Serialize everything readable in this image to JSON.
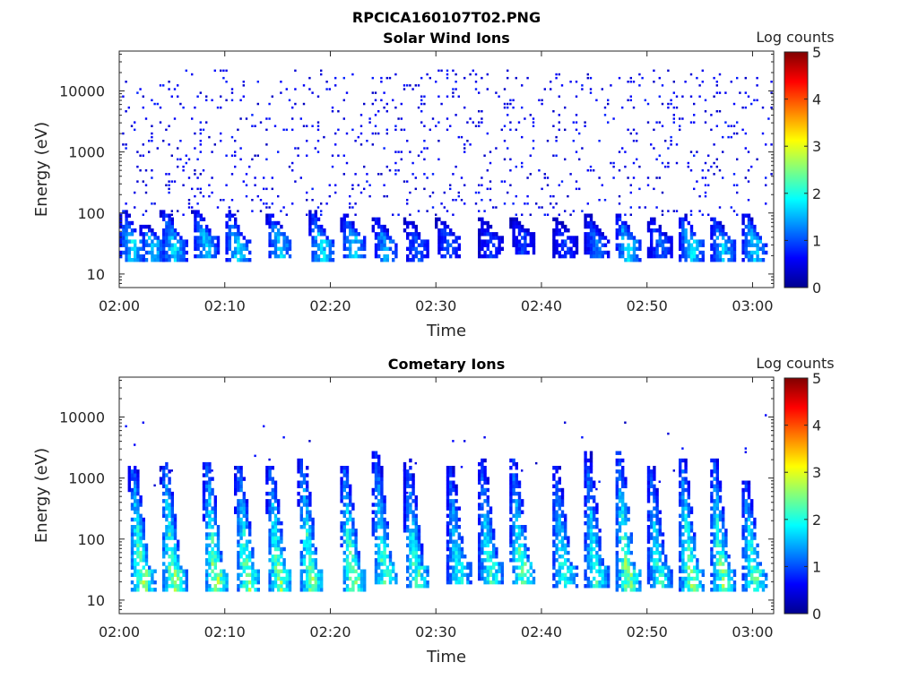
{
  "figure": {
    "title": "RPCICA160107T02.PNG"
  },
  "chart_data": [
    {
      "type": "heatmap",
      "title": "Solar Wind Ions",
      "xlabel": "Time",
      "ylabel": "Energy (eV)",
      "y_scale": "log",
      "ylim": [
        6,
        45000
      ],
      "x_range": [
        "02:00",
        "03:02"
      ],
      "x_ticks": [
        "02:00",
        "02:10",
        "02:20",
        "02:30",
        "02:40",
        "02:50",
        "03:00"
      ],
      "y_ticks": [
        "10",
        "100",
        "1000",
        "10000"
      ],
      "colorbar": {
        "label": "Log counts",
        "min": 0,
        "max": 5,
        "ticks": [
          "0",
          "1",
          "2",
          "3",
          "4",
          "5"
        ]
      },
      "scattered_low_counts": {
        "energy_range_eV": [
          80,
          20000
        ],
        "log_count": 0.3
      },
      "bursts": [
        {
          "time": "02:01",
          "peak_eV": 35,
          "top_eV": 110,
          "max_log_count": 1.9
        },
        {
          "time": "02:03",
          "peak_eV": 35,
          "top_eV": 60,
          "max_log_count": 1.8
        },
        {
          "time": "02:05",
          "peak_eV": 35,
          "top_eV": 100,
          "max_log_count": 1.9
        },
        {
          "time": "02:08",
          "peak_eV": 40,
          "top_eV": 100,
          "max_log_count": 1.8
        },
        {
          "time": "02:11",
          "peak_eV": 35,
          "top_eV": 100,
          "max_log_count": 1.9
        },
        {
          "time": "02:15",
          "peak_eV": 40,
          "top_eV": 90,
          "max_log_count": 1.8
        },
        {
          "time": "02:19",
          "peak_eV": 35,
          "top_eV": 100,
          "max_log_count": 1.9
        },
        {
          "time": "02:22",
          "peak_eV": 40,
          "top_eV": 90,
          "max_log_count": 1.8
        },
        {
          "time": "02:25",
          "peak_eV": 35,
          "top_eV": 80,
          "max_log_count": 1.6
        },
        {
          "time": "02:28",
          "peak_eV": 35,
          "top_eV": 80,
          "max_log_count": 1.2
        },
        {
          "time": "02:31",
          "peak_eV": 40,
          "top_eV": 80,
          "max_log_count": 1.2
        },
        {
          "time": "02:35",
          "peak_eV": 40,
          "top_eV": 80,
          "max_log_count": 1.0
        },
        {
          "time": "02:38",
          "peak_eV": 45,
          "top_eV": 80,
          "max_log_count": 1.0
        },
        {
          "time": "02:42",
          "peak_eV": 40,
          "top_eV": 80,
          "max_log_count": 1.0
        },
        {
          "time": "02:45",
          "peak_eV": 40,
          "top_eV": 90,
          "max_log_count": 1.3
        },
        {
          "time": "02:48",
          "peak_eV": 35,
          "top_eV": 90,
          "max_log_count": 1.9
        },
        {
          "time": "02:51",
          "peak_eV": 40,
          "top_eV": 80,
          "max_log_count": 1.2
        },
        {
          "time": "02:54",
          "peak_eV": 35,
          "top_eV": 90,
          "max_log_count": 1.9
        },
        {
          "time": "02:57",
          "peak_eV": 35,
          "top_eV": 80,
          "max_log_count": 1.8
        },
        {
          "time": "03:00",
          "peak_eV": 35,
          "top_eV": 90,
          "max_log_count": 1.9
        }
      ]
    },
    {
      "type": "heatmap",
      "title": "Cometary Ions",
      "xlabel": "Time",
      "ylabel": "Energy (eV)",
      "y_scale": "log",
      "ylim": [
        6,
        45000
      ],
      "x_range": [
        "02:00",
        "03:02"
      ],
      "x_ticks": [
        "02:00",
        "02:10",
        "02:20",
        "02:30",
        "02:40",
        "02:50",
        "03:00"
      ],
      "y_ticks": [
        "10",
        "100",
        "1000",
        "10000"
      ],
      "colorbar": {
        "label": "Log counts",
        "min": 0,
        "max": 5,
        "ticks": [
          "0",
          "1",
          "2",
          "3",
          "4",
          "5"
        ]
      },
      "scattered_low_counts": {
        "energy_range_eV": [
          500,
          10000
        ],
        "log_count": 0.3
      },
      "bursts": [
        {
          "time": "02:02",
          "peak_eV": 30,
          "top_eV": 1500,
          "max_log_count": 2.8
        },
        {
          "time": "02:05",
          "peak_eV": 30,
          "top_eV": 1800,
          "max_log_count": 2.8
        },
        {
          "time": "02:09",
          "peak_eV": 30,
          "top_eV": 1800,
          "max_log_count": 2.8
        },
        {
          "time": "02:12",
          "peak_eV": 30,
          "top_eV": 1500,
          "max_log_count": 2.7
        },
        {
          "time": "02:15",
          "peak_eV": 30,
          "top_eV": 1500,
          "max_log_count": 2.7
        },
        {
          "time": "02:18",
          "peak_eV": 30,
          "top_eV": 2000,
          "max_log_count": 2.7
        },
        {
          "time": "02:22",
          "peak_eV": 30,
          "top_eV": 1500,
          "max_log_count": 2.8
        },
        {
          "time": "02:25",
          "peak_eV": 40,
          "top_eV": 2500,
          "max_log_count": 2.5
        },
        {
          "time": "02:28",
          "peak_eV": 35,
          "top_eV": 2000,
          "max_log_count": 2.4
        },
        {
          "time": "02:32",
          "peak_eV": 40,
          "top_eV": 1500,
          "max_log_count": 2.2
        },
        {
          "time": "02:35",
          "peak_eV": 40,
          "top_eV": 2000,
          "max_log_count": 2.3
        },
        {
          "time": "02:38",
          "peak_eV": 40,
          "top_eV": 2000,
          "max_log_count": 2.5
        },
        {
          "time": "02:42",
          "peak_eV": 35,
          "top_eV": 1500,
          "max_log_count": 2.3
        },
        {
          "time": "02:45",
          "peak_eV": 35,
          "top_eV": 2500,
          "max_log_count": 2.3
        },
        {
          "time": "02:48",
          "peak_eV": 30,
          "top_eV": 2500,
          "max_log_count": 2.8
        },
        {
          "time": "02:51",
          "peak_eV": 35,
          "top_eV": 1500,
          "max_log_count": 2.3
        },
        {
          "time": "02:54",
          "peak_eV": 30,
          "top_eV": 2000,
          "max_log_count": 2.7
        },
        {
          "time": "02:57",
          "peak_eV": 30,
          "top_eV": 2000,
          "max_log_count": 2.7
        },
        {
          "time": "03:00",
          "peak_eV": 30,
          "top_eV": 800,
          "max_log_count": 2.6
        }
      ]
    }
  ]
}
